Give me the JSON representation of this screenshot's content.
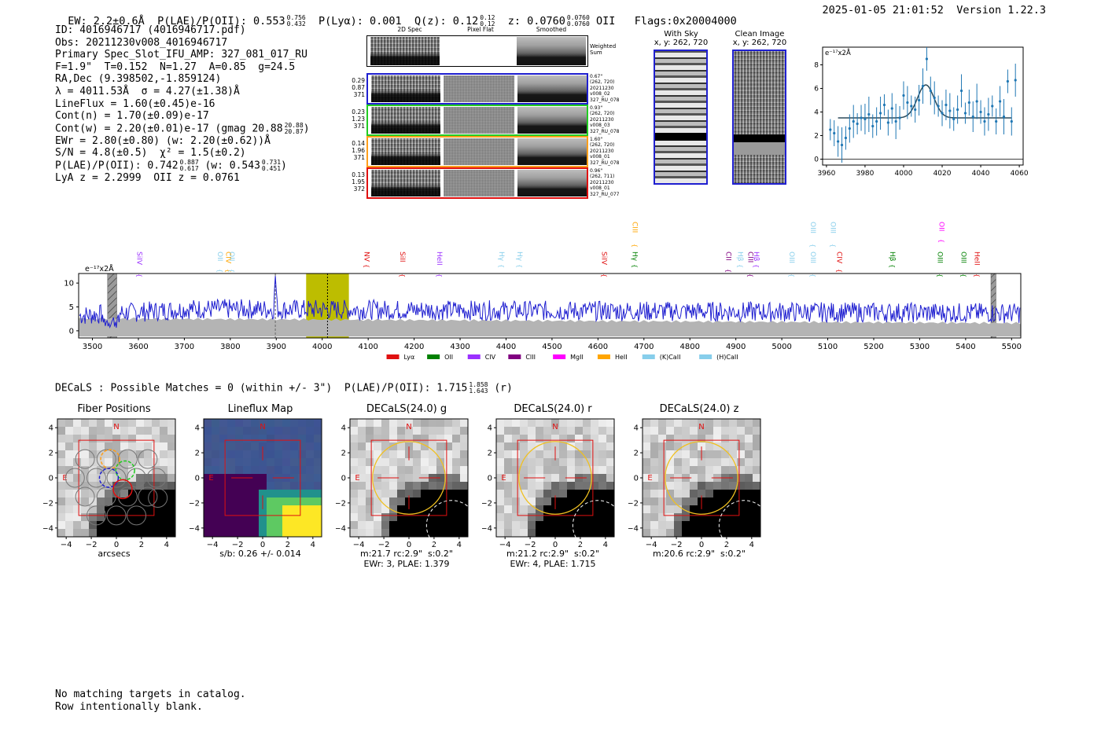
{
  "header": {
    "ew": "EW: 2.2±0.6Å",
    "plae_label": "P(LAE)/P(OII): 0.553",
    "plae_hi": "0.756",
    "plae_lo": "0.432",
    "plya": "P(Lyα): 0.001",
    "qz_label": "Q(z): 0.12",
    "qz_hi": "0.12",
    "qz_lo": "0.12",
    "z_label": "z: 0.0760",
    "z_hi": "0.0760",
    "z_lo": "0.0760",
    "z_line": "OII",
    "flags": "Flags:0x20004000",
    "timestamp": "2025-01-05 21:01:52",
    "version": "Version 1.22.3"
  },
  "info": {
    "id": "ID: 4016946717 (4016946717.pdf)",
    "obs": "Obs: 20211230v008_4016946717",
    "primary": "Primary Spec_Slot_IFU_AMP: 327_081_017_RU",
    "fit": "F=1.9\"  T=0.152  N=1.27  A=0.85  g=24.5",
    "radec": "RA,Dec (9.398502,-1.859124)",
    "lambda": "λ = 4011.53Å  σ = 4.27(±1.38)Å",
    "lineflux": "LineFlux = 1.60(±0.45)e-16",
    "contn": "Cont(n) = 1.70(±0.09)e-17",
    "contw": "Cont(w) = 2.20(±0.01)e-17 (gmag 20.88",
    "contw_hi": "20.88",
    "contw_lo": "20.87",
    "contw_end": ")",
    "ewr": "EWr = 2.80(±0.80) (w: 2.20(±0.62))Å",
    "sn": "S/N = 4.8(±0.5)  χ² = 1.5(±0.2)",
    "plae2": "P(LAE)/P(OII): 0.742",
    "plae2_hi": "0.887",
    "plae2_lo": "0.617",
    "plae2_w": "(w: 0.543",
    "plae2_w_hi": "0.731",
    "plae2_w_lo": "0.451",
    "plae2_end": ")",
    "lyaz": "LyA z = 2.2999  OII z = 0.0761"
  },
  "cutouts": {
    "col_2d": "2D Spec",
    "col_flat": "Pixel Flat",
    "col_smooth": "Smoothed",
    "weighted": "Weighted Sum",
    "rows": [
      {
        "color": "#1f1fd0",
        "left": [
          "0.29",
          "0.87",
          "371"
        ],
        "right": [
          "0.67\"",
          "(262, 720)",
          "20211230",
          "v008_02",
          "327_RU_078"
        ]
      },
      {
        "color": "#22cc22",
        "left": [
          "0.23",
          "1.23",
          "371"
        ],
        "right": [
          "0.93\"",
          "(262, 720)",
          "20211230",
          "v008_03",
          "327_RU_078"
        ]
      },
      {
        "color": "#ff9f1a",
        "left": [
          "0.14",
          "1.96",
          "371"
        ],
        "right": [
          "1.60\"",
          "(262, 720)",
          "20211230",
          "v008_01",
          "327_RU_078"
        ]
      },
      {
        "color": "#e01010",
        "left": [
          "0.13",
          "1.95",
          "372"
        ],
        "right": [
          "0.96\"",
          "(262, 711)",
          "20211230",
          "v008_01",
          "327_RU_077"
        ]
      }
    ],
    "with_sky_title": "With Sky",
    "with_sky_xy": "x, y: 262, 720",
    "clean_title": "Clean Image",
    "clean_xy": "x, y: 262, 720"
  },
  "colors": {
    "blue": "#1f1fd0",
    "fit_blue": "#1f77b4",
    "olive": "#bdbd00",
    "grey": "#b4b4b4",
    "red": "#e01010"
  },
  "chart_data": [
    {
      "type": "scatter",
      "title": "",
      "ylabel": "e⁻¹⁷x2Å",
      "xlim": [
        3958,
        4062
      ],
      "ylim": [
        -0.5,
        9.5
      ],
      "xticks": [
        3960,
        3980,
        4000,
        4020,
        4040,
        4060
      ],
      "yticks": [
        0,
        2,
        4,
        6,
        8
      ],
      "x": [
        3962,
        3964,
        3966,
        3968,
        3970,
        3972,
        3974,
        3976,
        3978,
        3980,
        3982,
        3984,
        3986,
        3988,
        3990,
        3992,
        3994,
        3996,
        3998,
        4000,
        4002,
        4004,
        4006,
        4008,
        4010,
        4012,
        4014,
        4016,
        4018,
        4020,
        4022,
        4024,
        4026,
        4028,
        4030,
        4032,
        4034,
        4036,
        4038,
        4040,
        4042,
        4044,
        4046,
        4048,
        4050,
        4052,
        4054,
        4056,
        4058
      ],
      "y": [
        2.5,
        2.2,
        1.5,
        1.2,
        1.8,
        2.6,
        3.2,
        3.0,
        3.5,
        3.4,
        3.8,
        2.8,
        3.2,
        3.9,
        4.6,
        3.1,
        4.3,
        3.2,
        3.5,
        5.4,
        4.8,
        4.5,
        4.2,
        5.0,
        6.2,
        8.5,
        5.8,
        5.2,
        4.5,
        3.9,
        4.6,
        4.1,
        3.4,
        4.2,
        5.8,
        3.9,
        4.8,
        3.6,
        4.9,
        4.0,
        3.2,
        3.8,
        4.5,
        3.2,
        4.9,
        3.6,
        6.6,
        3.2,
        6.7
      ],
      "fit_baseline": 3.5,
      "fit_peak": 6.3,
      "fit_center": 4011.5,
      "fit_sigma": 4.27
    },
    {
      "type": "line",
      "title": "",
      "ylabel": "e⁻¹⁷x2Å",
      "xlim": [
        3470,
        5520
      ],
      "ylim": [
        -1.5,
        12
      ],
      "xticks": [
        3500,
        3600,
        3700,
        3800,
        3900,
        4000,
        4100,
        4200,
        4300,
        4400,
        4500,
        4600,
        4700,
        4800,
        4900,
        5000,
        5100,
        5200,
        5300,
        5400,
        5500
      ],
      "yticks": [
        0,
        5,
        10
      ],
      "highlight_range": [
        3965,
        4058
      ],
      "marker_solid": 4011.5,
      "marker_dashed": 3898,
      "masked_ranges": [
        [
          3533,
          3553
        ],
        [
          5455,
          5466
        ]
      ],
      "lines": [
        {
          "label": "SiIV",
          "x": 3592,
          "color": "#9b30ff",
          "tier": 0
        },
        {
          "label": "OII",
          "x": 3768,
          "color": "#87ceeb",
          "tier": 0
        },
        {
          "label": "CIV",
          "x": 3786,
          "color": "#ffa500",
          "tier": 0
        },
        {
          "label": "OII",
          "x": 3793,
          "color": "#87ceeb",
          "tier": 0
        },
        {
          "label": "NV",
          "x": 4087,
          "color": "#e01010",
          "tier": 0
        },
        {
          "label": "SiII",
          "x": 4165,
          "color": "#e01010",
          "tier": 0
        },
        {
          "label": "HeII",
          "x": 4245,
          "color": "#9b30ff",
          "tier": 0
        },
        {
          "label": "Hγ",
          "x": 4380,
          "color": "#87ceeb",
          "tier": 0
        },
        {
          "label": "Hγ",
          "x": 4420,
          "color": "#87ceeb",
          "tier": 0
        },
        {
          "label": "SiIV",
          "x": 4604,
          "color": "#e01010",
          "tier": 0
        },
        {
          "label": "Hγ",
          "x": 4670,
          "color": "#008000",
          "tier": 0
        },
        {
          "label": "CIII",
          "x": 4670,
          "color": "#ffa500",
          "tier": 2
        },
        {
          "label": "CII",
          "x": 4874,
          "color": "#800080",
          "tier": 0
        },
        {
          "label": "Hβ",
          "x": 4900,
          "color": "#87ceeb",
          "tier": 0
        },
        {
          "label": "CIII",
          "x": 4922,
          "color": "#800080",
          "tier": 0
        },
        {
          "label": "Hβ",
          "x": 4935,
          "color": "#9b30ff",
          "tier": 0
        },
        {
          "label": "OIII",
          "x": 5012,
          "color": "#87ceeb",
          "tier": 0
        },
        {
          "label": "OIII",
          "x": 5058,
          "color": "#87ceeb",
          "tier": 0
        },
        {
          "label": "OIII",
          "x": 5058,
          "color": "#87ceeb",
          "tier": 2
        },
        {
          "label": "OIII",
          "x": 5102,
          "color": "#87ceeb",
          "tier": 2
        },
        {
          "label": "CIV",
          "x": 5115,
          "color": "#e01010",
          "tier": 0
        },
        {
          "label": "Hβ",
          "x": 5231,
          "color": "#008000",
          "tier": 0
        },
        {
          "label": "OIII",
          "x": 5334,
          "color": "#008000",
          "tier": 0
        },
        {
          "label": "OII",
          "x": 5338,
          "color": "#ff00ff",
          "tier": 2
        },
        {
          "label": "OIII",
          "x": 5386,
          "color": "#008000",
          "tier": 0
        },
        {
          "label": "HeII",
          "x": 5415,
          "color": "#e01010",
          "tier": 0
        }
      ],
      "legend": [
        {
          "label": "Lyα",
          "color": "#e01010"
        },
        {
          "label": "OII",
          "color": "#008000"
        },
        {
          "label": "CIV",
          "color": "#9b30ff"
        },
        {
          "label": "CIII",
          "color": "#800080"
        },
        {
          "label": "MgII",
          "color": "#ff00ff"
        },
        {
          "label": "HeII",
          "color": "#ffa500"
        },
        {
          "label": "(K)CaII",
          "color": "#87ceeb"
        },
        {
          "label": "(H)CaII",
          "color": "#87ceeb"
        }
      ]
    }
  ],
  "decals": {
    "header_label": "DECaLS : Possible Matches = 0 (within +/- 3\")  P(LAE)/P(OII): 1.715",
    "header_hi": "1.858",
    "header_lo": "1.643",
    "header_band": "(r)",
    "axis_ticks": [
      "−4",
      "−2",
      "0",
      "2",
      "4"
    ],
    "n_label": "N",
    "e_label": "E",
    "panels": [
      {
        "title": "Fiber Positions",
        "caption": "arcsecs",
        "kind": "fibers"
      },
      {
        "title": "Lineflux Map",
        "caption": "s/b: 0.26 +/- 0.014",
        "kind": "lineflux"
      },
      {
        "title": "DECaLS(24.0) g",
        "caption": "m:21.7 rc:2.9\"  s:0.2\"\nEWr: 3, PLAE: 1.379",
        "kind": "img"
      },
      {
        "title": "DECaLS(24.0) r",
        "caption": "m:21.2 rc:2.9\"  s:0.2\"\nEWr: 4, PLAE: 1.715",
        "kind": "img"
      },
      {
        "title": "DECaLS(24.0) z",
        "caption": "m:20.6 rc:2.9\"  s:0.2\"",
        "kind": "img"
      }
    ]
  },
  "footer": {
    "line1": "No matching targets in catalog.",
    "line2": "Row intentionally blank."
  }
}
